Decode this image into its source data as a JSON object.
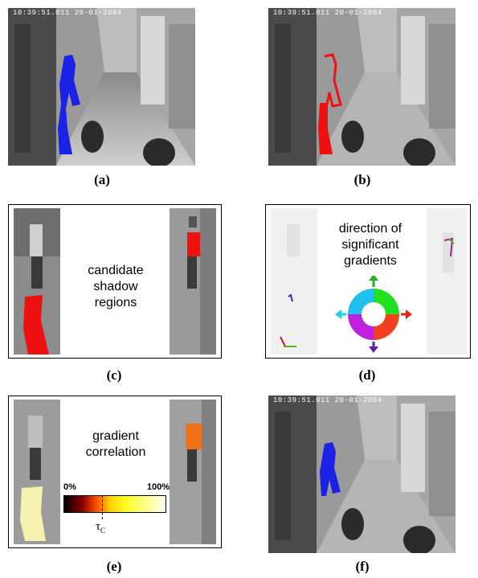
{
  "figure": {
    "panels": {
      "a": {
        "caption": "(a)",
        "timestamp": "10:39:51.011  20-01-2004"
      },
      "b": {
        "caption": "(b)",
        "timestamp": "10:39:51.011  20-01-2004"
      },
      "c": {
        "caption": "(c)",
        "lines": [
          "candidate",
          "shadow",
          "regions"
        ]
      },
      "d": {
        "caption": "(d)",
        "lines": [
          "direction of",
          "significant",
          "gradients"
        ]
      },
      "e": {
        "caption": "(e)",
        "lines": [
          "gradient",
          "correlation"
        ],
        "scale_min": "0%",
        "scale_max": "100%",
        "threshold_symbol": "τ",
        "threshold_sub": "C"
      },
      "f": {
        "caption": "(f)",
        "timestamp": "10:39:51.011  20-01-2004"
      }
    },
    "colors": {
      "blob_blue": "#1a22e6",
      "blob_red": "#ee1111",
      "shadow_yellow": "#f8f2b0",
      "person_orange": "#f07018"
    }
  }
}
